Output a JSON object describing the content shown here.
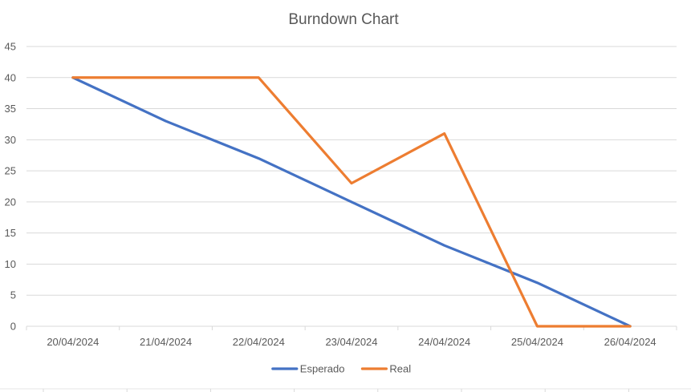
{
  "chart_data": {
    "type": "line",
    "title": "Burndown Chart",
    "xlabel": "",
    "ylabel": "",
    "categories": [
      "20/04/2024",
      "21/04/2024",
      "22/04/2024",
      "23/04/2024",
      "24/04/2024",
      "25/04/2024",
      "26/04/2024"
    ],
    "ylim": [
      0,
      45
    ],
    "yticks": [
      0,
      5,
      10,
      15,
      20,
      25,
      30,
      35,
      40,
      45
    ],
    "grid": true,
    "legend_position": "bottom",
    "series": [
      {
        "name": "Esperado",
        "color": "#4472c4",
        "values": [
          40,
          33,
          27,
          20,
          13,
          7,
          0
        ]
      },
      {
        "name": "Real",
        "color": "#ed7d31",
        "values": [
          40,
          40,
          40,
          23,
          31,
          0,
          0
        ]
      }
    ]
  }
}
